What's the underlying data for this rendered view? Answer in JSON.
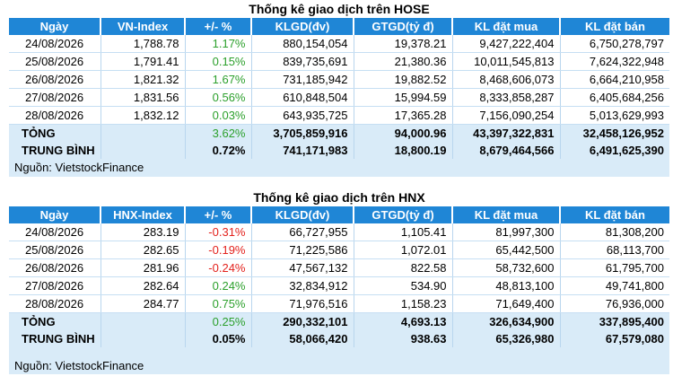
{
  "hose": {
    "title": "Thống kê giao dịch trên HOSE",
    "headers": [
      "Ngày",
      "VN-Index",
      "+/- %",
      "KLGD(đv)",
      "GTGD(tỷ đ)",
      "KL đặt mua",
      "KL đặt bán"
    ],
    "rows": [
      {
        "date": "24/08/2026",
        "index": "1,788.78",
        "pct": "1.17%",
        "dir": "pos",
        "klgd": "880,154,054",
        "gtgd": "19,378.21",
        "mua": "9,427,222,404",
        "ban": "6,750,278,797"
      },
      {
        "date": "25/08/2026",
        "index": "1,791.41",
        "pct": "0.15%",
        "dir": "pos",
        "klgd": "839,735,691",
        "gtgd": "21,380.36",
        "mua": "10,011,545,813",
        "ban": "7,624,322,948"
      },
      {
        "date": "26/08/2026",
        "index": "1,821.32",
        "pct": "1.67%",
        "dir": "pos",
        "klgd": "731,185,942",
        "gtgd": "19,882.52",
        "mua": "8,468,606,073",
        "ban": "6,664,210,958"
      },
      {
        "date": "27/08/2026",
        "index": "1,831.56",
        "pct": "0.56%",
        "dir": "pos",
        "klgd": "610,848,504",
        "gtgd": "15,994.59",
        "mua": "8,333,858,287",
        "ban": "6,405,684,256"
      },
      {
        "date": "28/08/2026",
        "index": "1,832.12",
        "pct": "0.03%",
        "dir": "pos",
        "klgd": "643,935,725",
        "gtgd": "17,365.28",
        "mua": "7,156,090,254",
        "ban": "5,013,629,993"
      }
    ],
    "total": {
      "label": "TỎNG",
      "pct": "3.62%",
      "klgd": "3,705,859,916",
      "gtgd": "94,000.96",
      "mua": "43,397,322,831",
      "ban": "32,458,126,952"
    },
    "average": {
      "label": "TRUNG BÌNH",
      "pct": "0.72%",
      "klgd": "741,171,983",
      "gtgd": "18,800.19",
      "mua": "8,679,464,566",
      "ban": "6,491,625,390"
    },
    "source": "Nguồn: VietstockFinance"
  },
  "hnx": {
    "title": "Thống kê giao dịch trên HNX",
    "headers": [
      "Ngày",
      "HNX-Index",
      "+/- %",
      "KLGD(đv)",
      "GTGD(tỷ đ)",
      "KL đặt mua",
      "KL đặt bán"
    ],
    "rows": [
      {
        "date": "24/08/2026",
        "index": "283.19",
        "pct": "-0.31%",
        "dir": "neg",
        "klgd": "66,727,955",
        "gtgd": "1,105.41",
        "mua": "81,997,300",
        "ban": "81,308,200"
      },
      {
        "date": "25/08/2026",
        "index": "282.65",
        "pct": "-0.19%",
        "dir": "neg",
        "klgd": "71,225,586",
        "gtgd": "1,072.01",
        "mua": "65,442,500",
        "ban": "68,113,700"
      },
      {
        "date": "26/08/2026",
        "index": "281.96",
        "pct": "-0.24%",
        "dir": "neg",
        "klgd": "47,567,132",
        "gtgd": "822.58",
        "mua": "58,732,600",
        "ban": "61,795,700"
      },
      {
        "date": "27/08/2026",
        "index": "282.64",
        "pct": "0.24%",
        "dir": "pos",
        "klgd": "32,834,912",
        "gtgd": "534.90",
        "mua": "48,813,100",
        "ban": "49,741,800"
      },
      {
        "date": "28/08/2026",
        "index": "284.77",
        "pct": "0.75%",
        "dir": "pos",
        "klgd": "71,976,516",
        "gtgd": "1,158.23",
        "mua": "71,649,400",
        "ban": "76,936,000"
      }
    ],
    "total": {
      "label": "TỎNG",
      "pct": "0.25%",
      "klgd": "290,332,101",
      "gtgd": "4,693.13",
      "mua": "326,634,900",
      "ban": "337,895,400"
    },
    "average": {
      "label": "TRUNG BÌNH",
      "pct": "0.05%",
      "klgd": "58,066,420",
      "gtgd": "938.63",
      "mua": "65,326,980",
      "ban": "67,579,080"
    },
    "source": "Nguồn: VietstockFinance"
  },
  "colors": {
    "header_bg": "#1f86d6",
    "summary_bg": "#d9ebf8",
    "positive": "#2ca02c",
    "negative": "#e3211c"
  }
}
